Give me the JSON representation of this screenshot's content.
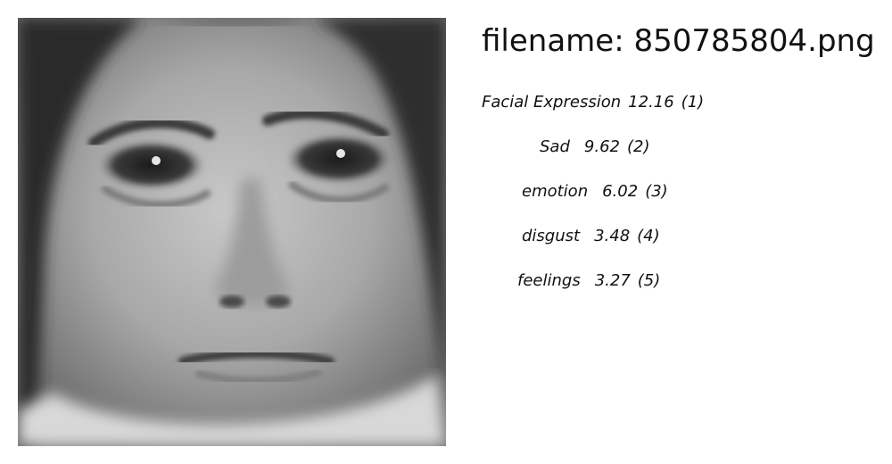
{
  "image": {
    "alt": "grayscale close-up of a child's face with a sad expression"
  },
  "file": {
    "prefix": "filename: ",
    "name": "850785804.png"
  },
  "labels": [
    {
      "name": "Facial Expression",
      "score": "12.16",
      "rank": "(1)"
    },
    {
      "name": "Sad",
      "score": "9.62",
      "rank": "(2)"
    },
    {
      "name": "emotion",
      "score": "6.02",
      "rank": "(3)"
    },
    {
      "name": "disgust",
      "score": "3.48",
      "rank": "(4)"
    },
    {
      "name": "feelings",
      "score": "3.27",
      "rank": "(5)"
    }
  ]
}
